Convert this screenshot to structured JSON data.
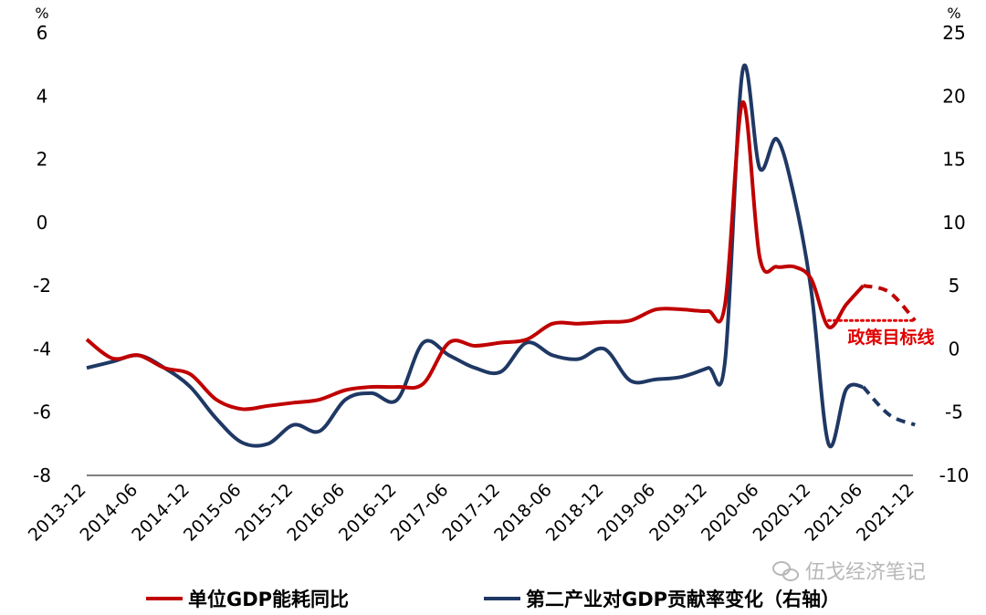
{
  "chart_data": {
    "type": "line",
    "title": "",
    "colors": {
      "energy": "#c00000",
      "industry": "#1f3864",
      "target": "#e00000",
      "watermark": "#b8b8b8"
    },
    "left_axis": {
      "unit": "%",
      "ylim": [
        -8,
        6
      ],
      "ticks": [
        6,
        4,
        2,
        0,
        -2,
        -4,
        -6,
        -8
      ]
    },
    "right_axis": {
      "unit": "%",
      "ylim": [
        -10,
        25
      ],
      "ticks": [
        25,
        20,
        15,
        10,
        5,
        0,
        -5,
        -10
      ]
    },
    "x_categories": [
      "2013-12",
      "2014-06",
      "2014-12",
      "2015-06",
      "2015-12",
      "2016-06",
      "2016-12",
      "2017-06",
      "2017-12",
      "2018-06",
      "2018-12",
      "2019-06",
      "2019-12",
      "2020-06",
      "2020-12",
      "2021-06",
      "2021-12"
    ],
    "series": [
      {
        "name": "单位GDP能耗同比",
        "axis": "left",
        "color": "#c00000",
        "solid_points": [
          [
            0.0,
            -3.7
          ],
          [
            0.5,
            -4.3
          ],
          [
            1.0,
            -4.2
          ],
          [
            1.5,
            -4.6
          ],
          [
            2.0,
            -4.8
          ],
          [
            2.5,
            -5.6
          ],
          [
            3.0,
            -5.9
          ],
          [
            3.5,
            -5.8
          ],
          [
            4.0,
            -5.7
          ],
          [
            4.5,
            -5.6
          ],
          [
            5.0,
            -5.3
          ],
          [
            5.5,
            -5.2
          ],
          [
            6.0,
            -5.2
          ],
          [
            6.5,
            -5.1
          ],
          [
            7.0,
            -3.8
          ],
          [
            7.5,
            -3.9
          ],
          [
            8.0,
            -3.8
          ],
          [
            8.5,
            -3.7
          ],
          [
            9.0,
            -3.2
          ],
          [
            9.5,
            -3.2
          ],
          [
            10.0,
            -3.15
          ],
          [
            10.5,
            -3.1
          ],
          [
            11.0,
            -2.75
          ],
          [
            11.5,
            -2.75
          ],
          [
            12.0,
            -2.8
          ],
          [
            12.33,
            -2.6
          ],
          [
            12.67,
            3.8
          ],
          [
            13.0,
            -1.1
          ],
          [
            13.33,
            -1.4
          ],
          [
            13.67,
            -1.4
          ],
          [
            14.0,
            -1.8
          ],
          [
            14.33,
            -3.3
          ],
          [
            14.67,
            -2.6
          ],
          [
            15.0,
            -2.0
          ]
        ],
        "dashed_points": [
          [
            15.0,
            -2.0
          ],
          [
            15.5,
            -2.2
          ],
          [
            16.0,
            -3.1
          ]
        ]
      },
      {
        "name": "第二产业对GDP贡献率变化（右轴）",
        "axis": "right",
        "color": "#1f3864",
        "solid_points": [
          [
            0.0,
            -1.5
          ],
          [
            0.5,
            -1.0
          ],
          [
            1.0,
            -0.5
          ],
          [
            1.5,
            -1.5
          ],
          [
            2.0,
            -3.0
          ],
          [
            2.5,
            -5.5
          ],
          [
            3.0,
            -7.4
          ],
          [
            3.5,
            -7.5
          ],
          [
            4.0,
            -6.0
          ],
          [
            4.5,
            -6.5
          ],
          [
            5.0,
            -4.0
          ],
          [
            5.5,
            -3.5
          ],
          [
            6.0,
            -4.0
          ],
          [
            6.5,
            0.5
          ],
          [
            7.0,
            -0.5
          ],
          [
            7.5,
            -1.5
          ],
          [
            8.0,
            -1.8
          ],
          [
            8.5,
            0.5
          ],
          [
            9.0,
            -0.5
          ],
          [
            9.5,
            -0.8
          ],
          [
            10.0,
            0.0
          ],
          [
            10.5,
            -2.5
          ],
          [
            11.0,
            -2.4
          ],
          [
            11.5,
            -2.2
          ],
          [
            12.0,
            -1.5
          ],
          [
            12.33,
            -1.0
          ],
          [
            12.67,
            22.0
          ],
          [
            13.0,
            14.3
          ],
          [
            13.33,
            16.6
          ],
          [
            13.67,
            12.0
          ],
          [
            14.0,
            4.5
          ],
          [
            14.33,
            -7.5
          ],
          [
            14.67,
            -3.2
          ],
          [
            15.0,
            -3.0
          ]
        ],
        "dashed_points": [
          [
            15.0,
            -3.0
          ],
          [
            15.5,
            -5.2
          ],
          [
            16.0,
            -6.0
          ]
        ]
      },
      {
        "name": "政策目标线",
        "axis": "left",
        "color": "#e00000",
        "style": "dotted",
        "points": [
          [
            14.33,
            -3.1
          ],
          [
            16.0,
            -3.1
          ]
        ]
      }
    ],
    "annotations": [
      {
        "text": "政策目标线",
        "color": "#e00000"
      }
    ],
    "legend": {
      "placement": "bottom",
      "items": [
        "单位GDP能耗同比",
        "第二产业对GDP贡献率变化（右轴）"
      ]
    },
    "watermark": "伍戈经济笔记",
    "grid": false
  }
}
